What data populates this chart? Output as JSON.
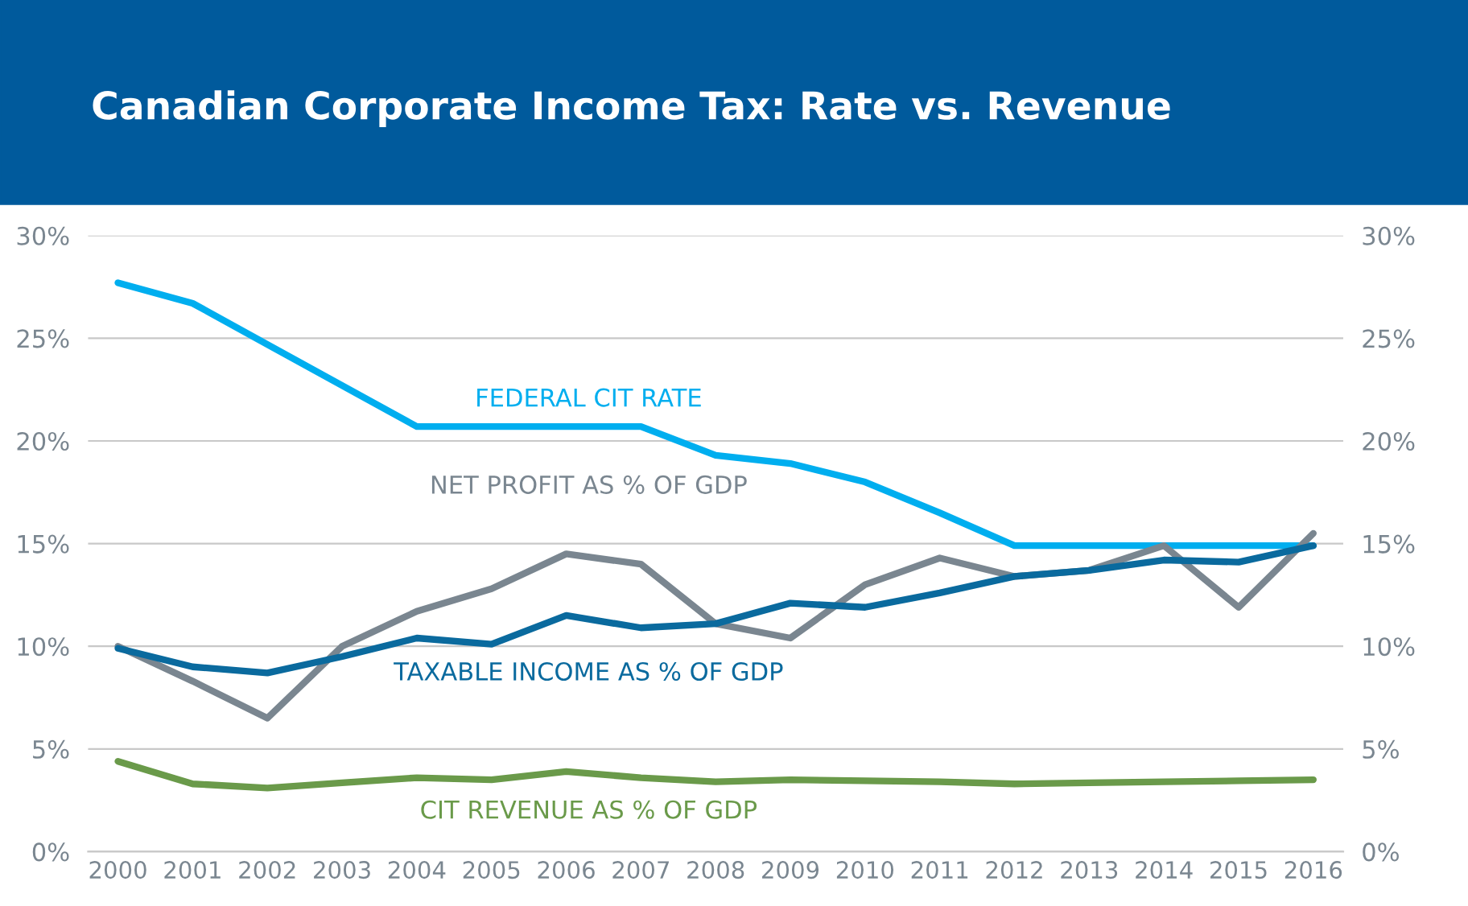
{
  "chart_data": {
    "type": "line",
    "title": "Canadian Corporate Income Tax: Rate vs. Revenue",
    "x": [
      2000,
      2001,
      2002,
      2003,
      2004,
      2005,
      2006,
      2007,
      2008,
      2009,
      2010,
      2011,
      2012,
      2013,
      2014,
      2015,
      2016
    ],
    "xlim": [
      1999.6,
      2016.4
    ],
    "xticks": [
      2000,
      2001,
      2002,
      2003,
      2004,
      2005,
      2006,
      2007,
      2008,
      2009,
      2010,
      2011,
      2012,
      2013,
      2014,
      2015,
      2016
    ],
    "ylim": [
      0,
      30
    ],
    "yticks": [
      {
        "value": 0,
        "label": "0%"
      },
      {
        "value": 5,
        "label": "5%"
      },
      {
        "value": 10,
        "label": "10%"
      },
      {
        "value": 15,
        "label": "15%"
      },
      {
        "value": 20,
        "label": "20%"
      },
      {
        "value": 25,
        "label": "25%"
      },
      {
        "value": 30,
        "label": "30%"
      }
    ],
    "y2lim": [
      0,
      30
    ],
    "y2ticks": [
      {
        "value": 0,
        "label": "0%"
      },
      {
        "value": 5,
        "label": "5%"
      },
      {
        "value": 10,
        "label": "10%"
      },
      {
        "value": 15,
        "label": "15%"
      },
      {
        "value": 20,
        "label": "20%"
      },
      {
        "value": 25,
        "label": "25%"
      },
      {
        "value": 30,
        "label": "30%"
      }
    ],
    "grid": "y",
    "legend": false,
    "marker": "none",
    "line_style": "solid",
    "series": [
      {
        "name": "FEDERAL CIT RATE",
        "color": "#00aeef",
        "values": [
          27.7,
          26.7,
          24.7,
          22.7,
          20.7,
          20.7,
          20.7,
          20.7,
          19.3,
          18.9,
          18.0,
          16.5,
          14.9,
          14.9,
          14.9,
          14.9,
          14.9
        ]
      },
      {
        "name": "NET PROFIT AS % OF GDP",
        "color": "#7a8690",
        "values": [
          10.0,
          8.3,
          6.5,
          10.0,
          11.7,
          12.8,
          14.5,
          14.0,
          11.1,
          10.4,
          13.0,
          14.3,
          13.4,
          13.7,
          14.9,
          11.9,
          15.5
        ]
      },
      {
        "name": "TAXABLE INCOME AS % OF GDP",
        "color": "#0a6a9e",
        "values": [
          9.9,
          9.0,
          8.7,
          9.5,
          10.4,
          10.1,
          11.5,
          10.9,
          11.1,
          12.1,
          11.9,
          12.6,
          13.4,
          13.7,
          14.2,
          14.1,
          14.9
        ]
      },
      {
        "name": "CIT REVENUE AS % OF GDP",
        "color": "#6a9a4a",
        "values": [
          4.4,
          3.3,
          3.1,
          3.35,
          3.6,
          3.5,
          3.9,
          3.6,
          3.4,
          3.5,
          3.45,
          3.4,
          3.3,
          3.35,
          3.4,
          3.45,
          3.5
        ]
      }
    ]
  }
}
